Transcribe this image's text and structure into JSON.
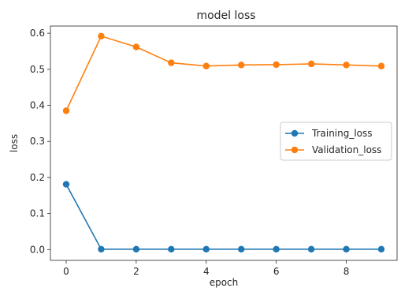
{
  "chart_data": {
    "type": "line",
    "title": "model loss",
    "xlabel": "epoch",
    "ylabel": "loss",
    "xlim": [
      -0.45,
      9.45
    ],
    "ylim": [
      -0.03,
      0.62
    ],
    "xticks": [
      0,
      2,
      4,
      6,
      8
    ],
    "yticks": [
      0.0,
      0.1,
      0.2,
      0.3,
      0.4,
      0.5,
      0.6
    ],
    "ytick_labels": [
      "0.0",
      "0.1",
      "0.2",
      "0.3",
      "0.4",
      "0.5",
      "0.6"
    ],
    "grid": false,
    "legend_position": "center-right",
    "x": [
      0,
      1,
      2,
      3,
      4,
      5,
      6,
      7,
      8,
      9
    ],
    "series": [
      {
        "name": "Training_loss",
        "color": "#1f77b4",
        "values": [
          0.181,
          0.001,
          0.001,
          0.001,
          0.001,
          0.001,
          0.001,
          0.001,
          0.001,
          0.001
        ]
      },
      {
        "name": "Validation_loss",
        "color": "#ff7f0e",
        "values": [
          0.385,
          0.592,
          0.562,
          0.518,
          0.509,
          0.512,
          0.513,
          0.515,
          0.512,
          0.509
        ]
      }
    ]
  }
}
